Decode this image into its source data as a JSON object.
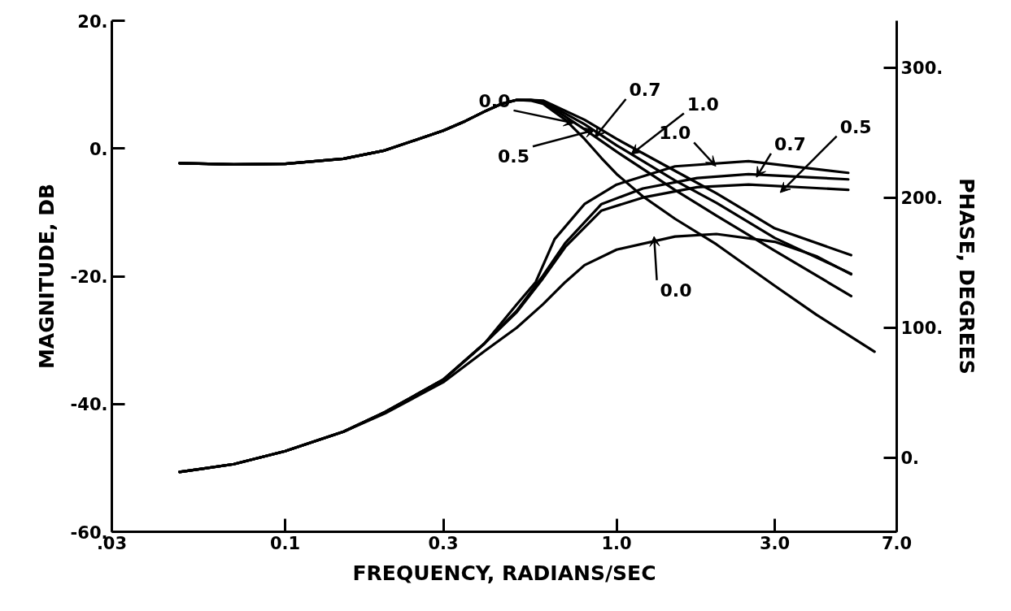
{
  "chart_data": {
    "type": "line",
    "xlabel": "FREQUENCY, RADIANS/SEC",
    "ylabel": "MAGNITUDE, DB",
    "y2label": "PHASE, DEGREES",
    "log": "x",
    "grid": false,
    "marker": "none",
    "line_style": "solid",
    "xlim": [
      0.03,
      7.0
    ],
    "xticks": [
      {
        "value": 0.03,
        "label": ".03"
      },
      {
        "value": 0.1,
        "label": "0.1"
      },
      {
        "value": 0.3,
        "label": "0.3"
      },
      {
        "value": 1.0,
        "label": "1.0"
      },
      {
        "value": 3.0,
        "label": "3.0"
      },
      {
        "value": 7.0,
        "label": "7.0"
      }
    ],
    "ylim": [
      -60,
      20
    ],
    "yticks": [
      {
        "value": 20,
        "label": "20."
      },
      {
        "value": 0,
        "label": "0."
      },
      {
        "value": -20,
        "label": "-20."
      },
      {
        "value": -40,
        "label": "-40."
      },
      {
        "value": -60,
        "label": "-60."
      }
    ],
    "y2lim": [
      -57,
      336
    ],
    "y2ticks": [
      {
        "value": 0,
        "label": "0."
      },
      {
        "value": 100,
        "label": "100."
      },
      {
        "value": 200,
        "label": "200."
      },
      {
        "value": 300,
        "label": "300."
      }
    ],
    "series": [
      {
        "name": "0.0",
        "color": "#000000",
        "x": [
          0.048,
          0.07,
          0.1,
          0.15,
          0.2,
          0.25,
          0.3,
          0.35,
          0.4,
          0.45,
          0.5,
          0.55,
          0.6,
          0.7,
          0.8,
          0.9,
          1.0,
          1.2,
          1.5,
          2.0,
          3.0,
          4.0,
          6.0
        ],
        "values": [
          -2.3,
          -2.5,
          -2.4,
          -1.6,
          -0.3,
          1.4,
          2.8,
          4.3,
          5.8,
          7.0,
          7.6,
          7.5,
          7.0,
          4.5,
          1.5,
          -1.5,
          -4,
          -7.5,
          -11,
          -15,
          -21.5,
          -26,
          -31.8
        ]
      },
      {
        "name": "0.5",
        "color": "#000000",
        "x": [
          0.048,
          0.07,
          0.1,
          0.15,
          0.2,
          0.25,
          0.3,
          0.35,
          0.4,
          0.45,
          0.5,
          0.55,
          0.6,
          0.8,
          1.0,
          1.5,
          2.0,
          3.0,
          5.1
        ],
        "values": [
          -2.3,
          -2.5,
          -2.4,
          -1.6,
          -0.3,
          1.4,
          2.8,
          4.3,
          5.8,
          7.0,
          7.6,
          7.6,
          7.3,
          3.0,
          -0.5,
          -6.5,
          -10.5,
          -16,
          -23.1
        ]
      },
      {
        "name": "0.7",
        "color": "#000000",
        "x": [
          0.048,
          0.07,
          0.1,
          0.15,
          0.2,
          0.25,
          0.3,
          0.35,
          0.4,
          0.45,
          0.5,
          0.55,
          0.6,
          0.8,
          1.0,
          1.5,
          2.0,
          3.0,
          5.1
        ],
        "values": [
          -2.3,
          -2.5,
          -2.4,
          -1.6,
          -0.3,
          1.4,
          2.8,
          4.3,
          5.8,
          7.0,
          7.6,
          7.6,
          7.4,
          3.8,
          0.5,
          -5,
          -8.5,
          -14,
          -19.6
        ]
      },
      {
        "name": "1.0",
        "color": "#000000",
        "x": [
          0.048,
          0.07,
          0.1,
          0.15,
          0.2,
          0.25,
          0.3,
          0.35,
          0.4,
          0.45,
          0.5,
          0.55,
          0.6,
          0.8,
          1.0,
          1.5,
          2.0,
          3.0,
          5.1
        ],
        "values": [
          -2.3,
          -2.5,
          -2.4,
          -1.6,
          -0.3,
          1.4,
          2.8,
          4.3,
          5.8,
          7.0,
          7.6,
          7.6,
          7.5,
          4.5,
          1.5,
          -3.5,
          -7,
          -12.5,
          -16.7
        ]
      },
      {
        "name": "0.0",
        "color": "#000000",
        "axis": "y2",
        "x": [
          0.048,
          0.07,
          0.1,
          0.15,
          0.2,
          0.3,
          0.4,
          0.5,
          0.6,
          0.7,
          0.8,
          1.0,
          1.5,
          2.0,
          3.0,
          4.0,
          5.1
        ],
        "values": [
          -11,
          -5,
          5,
          20,
          34,
          58,
          82,
          100,
          118,
          135,
          148,
          160,
          170,
          172,
          166,
          155,
          141
        ]
      },
      {
        "name": "0.5",
        "color": "#000000",
        "axis": "y2",
        "x": [
          0.048,
          0.07,
          0.1,
          0.15,
          0.2,
          0.3,
          0.4,
          0.5,
          0.6,
          0.7,
          0.9,
          1.2,
          1.75,
          2.5,
          5.0
        ],
        "values": [
          -11,
          -5,
          5,
          20,
          35,
          60,
          88,
          112,
          138,
          162,
          190,
          200,
          208,
          210,
          206
        ]
      },
      {
        "name": "0.7",
        "color": "#000000",
        "axis": "y2",
        "x": [
          0.048,
          0.07,
          0.1,
          0.15,
          0.2,
          0.3,
          0.4,
          0.5,
          0.6,
          0.7,
          0.9,
          1.2,
          1.75,
          2.5,
          5.0
        ],
        "values": [
          -11,
          -5,
          5,
          20,
          35,
          60,
          88,
          113,
          140,
          165,
          195,
          207,
          215,
          218,
          214
        ]
      },
      {
        "name": "1.0",
        "color": "#000000",
        "axis": "y2",
        "x": [
          0.048,
          0.07,
          0.1,
          0.15,
          0.2,
          0.3,
          0.4,
          0.5,
          0.57,
          0.65,
          0.8,
          1.0,
          1.5,
          2.5,
          5.0
        ],
        "values": [
          -11,
          -5,
          5,
          20,
          35,
          60,
          88,
          118,
          135,
          168,
          195,
          210,
          224,
          228,
          219
        ]
      }
    ]
  }
}
